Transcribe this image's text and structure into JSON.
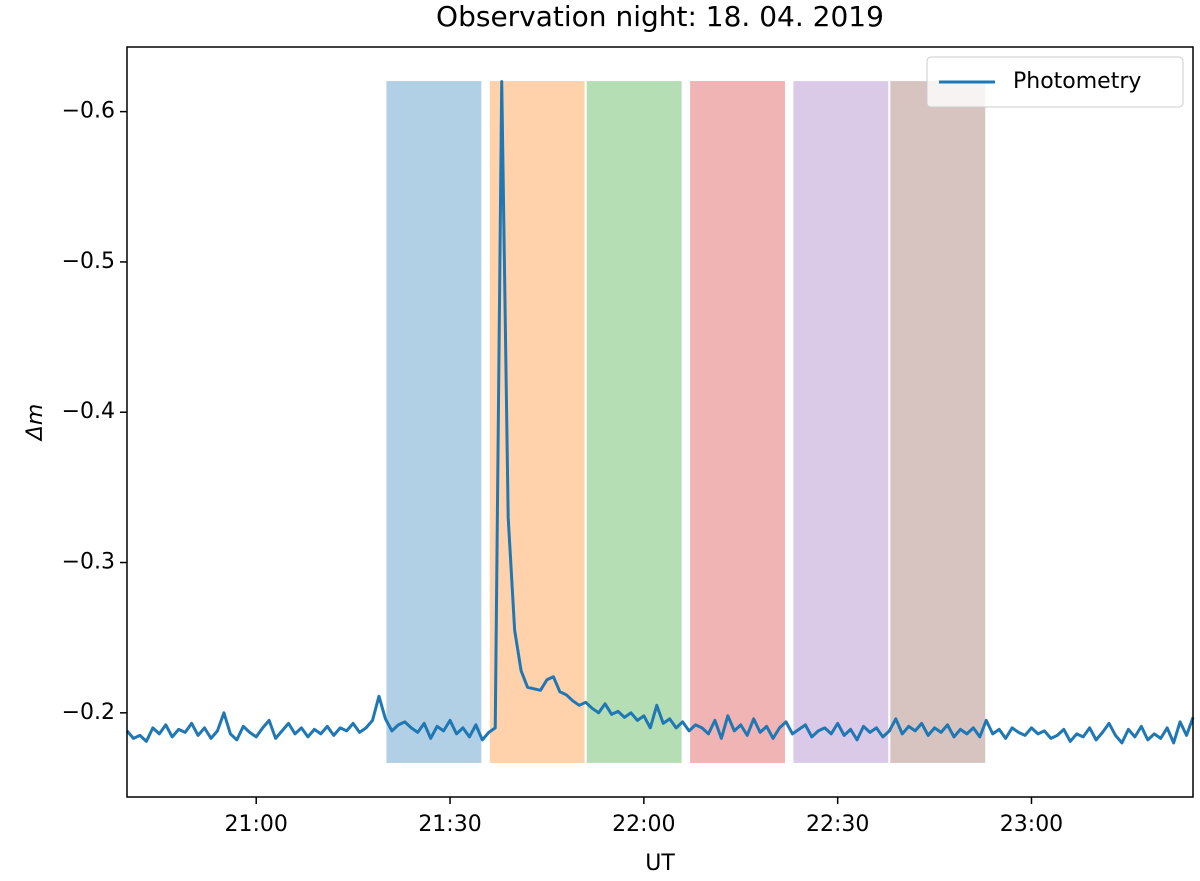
{
  "chart_data": {
    "type": "line",
    "title": "Observation night: 18. 04. 2019",
    "x_label": "UT",
    "y_label": "Δm",
    "x": [
      "20:40",
      "20:41",
      "20:42",
      "20:43",
      "20:44",
      "20:45",
      "20:46",
      "20:47",
      "20:48",
      "20:49",
      "20:50",
      "20:51",
      "20:52",
      "20:53",
      "20:54",
      "20:55",
      "20:56",
      "20:57",
      "20:58",
      "20:59",
      "21:00",
      "21:01",
      "21:02",
      "21:03",
      "21:04",
      "21:05",
      "21:06",
      "21:07",
      "21:08",
      "21:09",
      "21:10",
      "21:11",
      "21:12",
      "21:13",
      "21:14",
      "21:15",
      "21:16",
      "21:17",
      "21:18",
      "21:19",
      "21:20",
      "21:21",
      "21:22",
      "21:23",
      "21:24",
      "21:25",
      "21:26",
      "21:27",
      "21:28",
      "21:29",
      "21:30",
      "21:31",
      "21:32",
      "21:33",
      "21:34",
      "21:35",
      "21:36",
      "21:37",
      "21:38",
      "21:39",
      "21:40",
      "21:41",
      "21:42",
      "21:43",
      "21:44",
      "21:45",
      "21:46",
      "21:47",
      "21:48",
      "21:49",
      "21:50",
      "21:51",
      "21:52",
      "21:53",
      "21:54",
      "21:55",
      "21:56",
      "21:57",
      "21:58",
      "21:59",
      "22:00",
      "22:01",
      "22:02",
      "22:03",
      "22:04",
      "22:05",
      "22:06",
      "22:07",
      "22:08",
      "22:09",
      "22:10",
      "22:11",
      "22:12",
      "22:13",
      "22:14",
      "22:15",
      "22:16",
      "22:17",
      "22:18",
      "22:19",
      "22:20",
      "22:21",
      "22:22",
      "22:23",
      "22:24",
      "22:25",
      "22:26",
      "22:27",
      "22:28",
      "22:29",
      "22:30",
      "22:31",
      "22:32",
      "22:33",
      "22:34",
      "22:35",
      "22:36",
      "22:37",
      "22:38",
      "22:39",
      "22:40",
      "22:41",
      "22:42",
      "22:43",
      "22:44",
      "22:45",
      "22:46",
      "22:47",
      "22:48",
      "22:49",
      "22:50",
      "22:51",
      "22:52",
      "22:53",
      "22:54",
      "22:55",
      "22:56",
      "22:57",
      "22:58",
      "22:59",
      "23:00",
      "23:01",
      "23:02",
      "23:03",
      "23:04",
      "23:05",
      "23:06",
      "23:07",
      "23:08",
      "23:09",
      "23:10",
      "23:11",
      "23:12",
      "23:13",
      "23:14",
      "23:15",
      "23:16",
      "23:17",
      "23:18",
      "23:19",
      "23:20",
      "23:21",
      "23:22",
      "23:23",
      "23:24",
      "23:25"
    ],
    "series": [
      {
        "name": "Photometry",
        "color": "#1f77b4",
        "values": [
          -0.188,
          -0.183,
          -0.185,
          -0.181,
          -0.19,
          -0.186,
          -0.192,
          -0.184,
          -0.189,
          -0.187,
          -0.193,
          -0.185,
          -0.19,
          -0.183,
          -0.188,
          -0.2,
          -0.186,
          -0.182,
          -0.191,
          -0.187,
          -0.184,
          -0.19,
          -0.195,
          -0.183,
          -0.188,
          -0.193,
          -0.186,
          -0.19,
          -0.184,
          -0.189,
          -0.186,
          -0.191,
          -0.185,
          -0.19,
          -0.188,
          -0.193,
          -0.187,
          -0.19,
          -0.195,
          -0.211,
          -0.196,
          -0.188,
          -0.192,
          -0.194,
          -0.19,
          -0.187,
          -0.193,
          -0.183,
          -0.191,
          -0.188,
          -0.195,
          -0.186,
          -0.19,
          -0.184,
          -0.192,
          -0.182,
          -0.187,
          -0.19,
          -0.62,
          -0.33,
          -0.255,
          -0.228,
          -0.217,
          -0.216,
          -0.215,
          -0.222,
          -0.224,
          -0.214,
          -0.212,
          -0.208,
          -0.205,
          -0.207,
          -0.203,
          -0.2,
          -0.206,
          -0.199,
          -0.201,
          -0.197,
          -0.2,
          -0.195,
          -0.198,
          -0.19,
          -0.205,
          -0.193,
          -0.196,
          -0.19,
          -0.194,
          -0.188,
          -0.192,
          -0.19,
          -0.186,
          -0.195,
          -0.183,
          -0.198,
          -0.188,
          -0.192,
          -0.185,
          -0.196,
          -0.187,
          -0.191,
          -0.183,
          -0.19,
          -0.194,
          -0.186,
          -0.189,
          -0.192,
          -0.184,
          -0.188,
          -0.19,
          -0.186,
          -0.193,
          -0.185,
          -0.189,
          -0.182,
          -0.191,
          -0.187,
          -0.19,
          -0.184,
          -0.188,
          -0.196,
          -0.186,
          -0.191,
          -0.188,
          -0.193,
          -0.185,
          -0.19,
          -0.187,
          -0.192,
          -0.184,
          -0.189,
          -0.186,
          -0.19,
          -0.184,
          -0.195,
          -0.186,
          -0.189,
          -0.183,
          -0.19,
          -0.187,
          -0.185,
          -0.19,
          -0.186,
          -0.188,
          -0.183,
          -0.185,
          -0.189,
          -0.181,
          -0.186,
          -0.184,
          -0.19,
          -0.182,
          -0.187,
          -0.193,
          -0.185,
          -0.18,
          -0.189,
          -0.184,
          -0.191,
          -0.182,
          -0.186,
          -0.183,
          -0.19,
          -0.18,
          -0.194,
          -0.185,
          -0.197
        ]
      }
    ],
    "spans": [
      {
        "start": "21:20",
        "end": "21:35",
        "color": "#1f77b4"
      },
      {
        "start": "21:36",
        "end": "21:51",
        "color": "#ff7f0e"
      },
      {
        "start": "21:51",
        "end": "22:06",
        "color": "#2ca02c"
      },
      {
        "start": "22:07",
        "end": "22:22",
        "color": "#d62728"
      },
      {
        "start": "22:23",
        "end": "22:38",
        "color": "#9467bd"
      },
      {
        "start": "22:38",
        "end": "22:53",
        "color": "#8c564b"
      }
    ],
    "span_ylim": [
      -0.166,
      -0.621
    ],
    "xlim": [
      "20:40",
      "23:25"
    ],
    "xticks": [
      "21:00",
      "21:30",
      "22:00",
      "22:30",
      "23:00"
    ],
    "ylim": [
      -0.643,
      -0.144
    ],
    "y_inverted": true,
    "yticks": [
      {
        "value": -0.6,
        "label": "−0.6"
      },
      {
        "value": -0.5,
        "label": "−0.5"
      },
      {
        "value": -0.4,
        "label": "−0.4"
      },
      {
        "value": -0.3,
        "label": "−0.3"
      },
      {
        "value": -0.2,
        "label": "−0.2"
      }
    ],
    "legend": "upper right"
  }
}
